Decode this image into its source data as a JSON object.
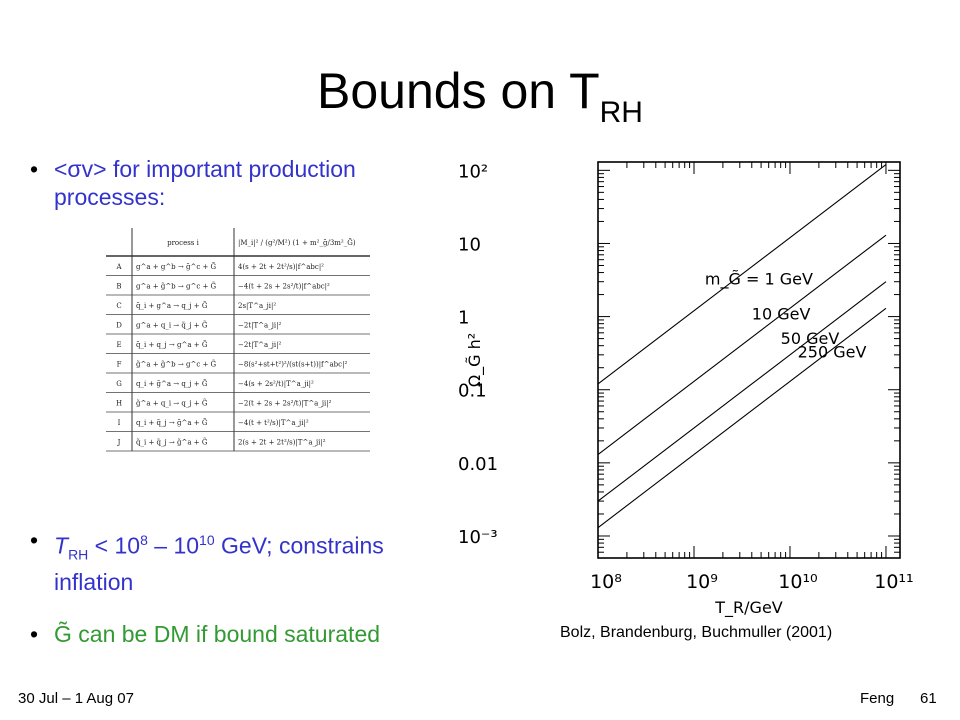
{
  "slide": {
    "title_main": "Bounds on T",
    "title_T": "",
    "title_sub": "RH",
    "bullet_dot": "•",
    "bullet1": "<σv> for important production processes:",
    "bullet2_T": "T",
    "bullet2_sub": "RH",
    "bullet2_mid": " < 10",
    "bullet2_exp1": "8",
    "bullet2_mid2": " – 10",
    "bullet2_exp2": "10",
    "bullet2_tail": " GeV; constrains inflation",
    "bullet3": "G̃ can be DM if bound saturated",
    "caption": "Bolz, Brandenburg, Buchmuller (2001)",
    "footer_left": "30 Jul – 1 Aug 07",
    "footer_right": "Feng",
    "page_number": "61"
  },
  "colors": {
    "blue": "#3333cc",
    "green": "#339933",
    "text": "#000000"
  },
  "table": {
    "header": [
      "process i",
      "|M_i|² / (g²/M²) (1 + m²_g̃/3m²_G̃)"
    ],
    "rows": [
      [
        "A",
        "g^a + g^b → g̃^c + G̃",
        "4(s + 2t + 2t²/s)|f^abc|²"
      ],
      [
        "B",
        "g^a + g̃^b → g^c + G̃",
        "−4(t + 2s + 2s²/t)|f^abc|²"
      ],
      [
        "C",
        "q̃_i + g^a → q_j + G̃",
        "2s|T^a_ji|²"
      ],
      [
        "D",
        "g^a + q_i → q̃_j + G̃",
        "−2t|T^a_ji|²"
      ],
      [
        "E",
        "q̃_i + q_j → g^a + G̃",
        "−2t|T^a_ji|²"
      ],
      [
        "F",
        "g̃^a + g̃^b → g^c + G̃",
        "−8(s²+st+t²)²/(st(s+t))|f^abc|²"
      ],
      [
        "G",
        "q_i + g̃^a → q_j + G̃",
        "−4(s + 2s²/t)|T^a_ji|²"
      ],
      [
        "H",
        "g̃^a + q_i → q_j + G̃",
        "−2(t + 2s + 2s²/t)|T^a_ji|²"
      ],
      [
        "I",
        "q_i + q̃_j → g̃^a + G̃",
        "−4(t + t²/s)|T^a_ji|²"
      ],
      [
        "J",
        "q̃_i + q̃_j → g̃^a + G̃",
        "2(s + 2t + 2t²/s)|T^a_ji|²"
      ]
    ]
  },
  "chart_data": {
    "type": "line",
    "xlabel": "T_R/GeV",
    "ylabel": "Ω_G̃ h²",
    "x_scale": "log",
    "y_scale": "log",
    "xlim": [
      100000000.0,
      140000000000.0
    ],
    "ylim": [
      0.0005,
      130
    ],
    "x_tick_labels": [
      "10⁸",
      "10⁹",
      "10¹⁰",
      "10¹¹"
    ],
    "x_tick_values": [
      100000000.0,
      1000000000.0,
      10000000000.0,
      100000000000.0
    ],
    "y_tick_labels": [
      "10⁻³",
      "0.01",
      "0.1",
      "1",
      "10",
      "10²"
    ],
    "y_tick_values": [
      0.001,
      0.01,
      0.1,
      1,
      10,
      100
    ],
    "series": [
      {
        "name": "m_G̃ = 1 GeV",
        "x": [
          100000000.0,
          100000000000.0
        ],
        "y": [
          0.12,
          120
        ]
      },
      {
        "name": "10 GeV",
        "x": [
          100000000.0,
          100000000000.0
        ],
        "y": [
          0.013,
          13
        ]
      },
      {
        "name": "50 GeV",
        "x": [
          100000000.0,
          100000000000.0
        ],
        "y": [
          0.003,
          3
        ]
      },
      {
        "name": "250 GeV",
        "x": [
          100000000.0,
          100000000000.0
        ],
        "y": [
          0.0013,
          1.3
        ]
      }
    ],
    "annotations": [
      "m_G̃ = 1 GeV",
      "10 GeV",
      "50 GeV",
      "250 GeV"
    ],
    "grid": false
  }
}
